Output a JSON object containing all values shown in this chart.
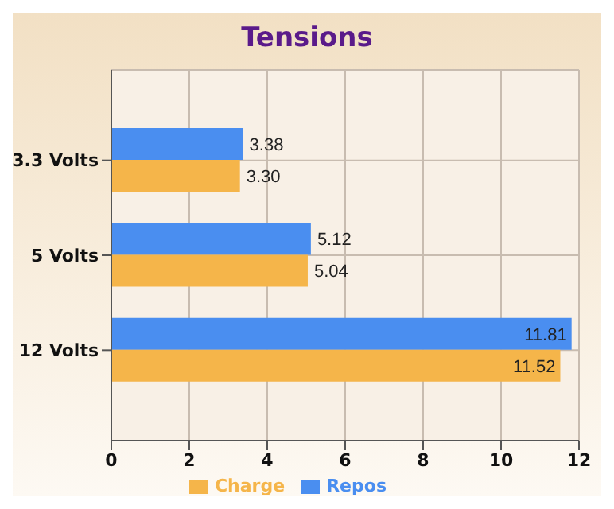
{
  "chart_data": {
    "type": "bar",
    "orientation": "horizontal",
    "title": "Tensions",
    "categories": [
      "3.3 Volts",
      "5 Volts",
      "12 Volts"
    ],
    "series": [
      {
        "name": "Repos",
        "color": "#4a8ef0",
        "values": [
          3.38,
          5.12,
          11.81
        ],
        "value_labels": [
          "3.38",
          "5.12",
          "11.81"
        ]
      },
      {
        "name": "Charge",
        "color": "#f5b54a",
        "values": [
          3.3,
          5.04,
          11.52
        ],
        "value_labels": [
          "3.30",
          "5.04",
          "11.52"
        ]
      }
    ],
    "xlim": [
      0,
      12
    ],
    "xticks": [
      0,
      2,
      4,
      6,
      8,
      10,
      12
    ],
    "grid": true,
    "legend": "bottom"
  }
}
